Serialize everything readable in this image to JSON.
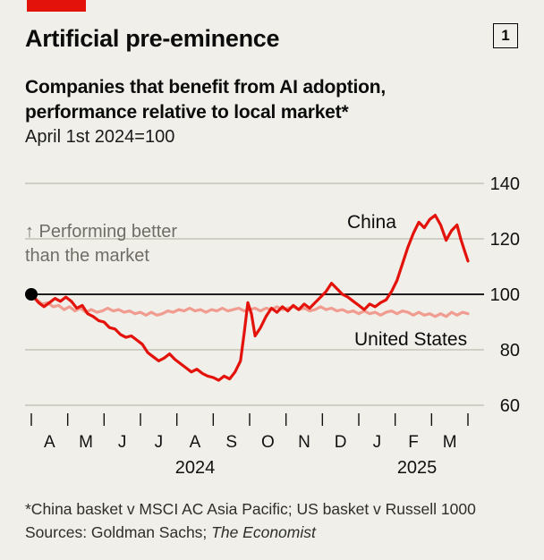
{
  "page": {
    "background": "#f0efe9"
  },
  "header": {
    "brand_color": "#e3120b",
    "figure_number": "1",
    "title": "Artificial pre-eminence",
    "subtitle_line1": "Companies that benefit from AI adoption,",
    "subtitle_line2": "performance relative to local market*",
    "index_note": "April 1st 2024=100"
  },
  "annotation": {
    "line1": "↑ Performing better",
    "line2": "than the market"
  },
  "chart_data": {
    "type": "line",
    "title": "Companies that benefit from AI adoption, performance relative to local market, April 1st 2024=100",
    "x_axis": {
      "months": [
        "A",
        "M",
        "J",
        "J",
        "A",
        "S",
        "O",
        "N",
        "D",
        "J",
        "F",
        "M"
      ],
      "years": [
        {
          "label": "2024",
          "center_month": 4.5
        },
        {
          "label": "2025",
          "center_month": 10.6
        }
      ]
    },
    "y_axis": {
      "ticks": [
        140,
        120,
        100,
        80,
        60
      ],
      "range": [
        60,
        140
      ],
      "baseline": 100
    },
    "grid_color": "#bdbab0",
    "baseline_color": "#000000",
    "start_marker": {
      "x": 0,
      "y": 100
    },
    "series": [
      {
        "name": "China",
        "color": "#e3120b",
        "points": [
          [
            0,
            100
          ],
          [
            0.1,
            98.5
          ],
          [
            0.2,
            97
          ],
          [
            0.35,
            95.5
          ],
          [
            0.5,
            97
          ],
          [
            0.65,
            98.5
          ],
          [
            0.8,
            97.5
          ],
          [
            0.95,
            99
          ],
          [
            1.1,
            97.5
          ],
          [
            1.25,
            95
          ],
          [
            1.4,
            96
          ],
          [
            1.55,
            93
          ],
          [
            1.7,
            92
          ],
          [
            1.85,
            90.5
          ],
          [
            2.0,
            90
          ],
          [
            2.15,
            88
          ],
          [
            2.3,
            87.5
          ],
          [
            2.45,
            85.5
          ],
          [
            2.6,
            84.5
          ],
          [
            2.75,
            85
          ],
          [
            2.9,
            83.5
          ],
          [
            3.05,
            82
          ],
          [
            3.2,
            79
          ],
          [
            3.35,
            77.5
          ],
          [
            3.5,
            76
          ],
          [
            3.65,
            77
          ],
          [
            3.8,
            78.5
          ],
          [
            3.95,
            76.5
          ],
          [
            4.1,
            75
          ],
          [
            4.25,
            73.5
          ],
          [
            4.4,
            72
          ],
          [
            4.55,
            73
          ],
          [
            4.7,
            71.5
          ],
          [
            4.85,
            70.5
          ],
          [
            5.0,
            70
          ],
          [
            5.15,
            69
          ],
          [
            5.3,
            70.5
          ],
          [
            5.45,
            69.5
          ],
          [
            5.6,
            72
          ],
          [
            5.75,
            76
          ],
          [
            5.85,
            86
          ],
          [
            5.95,
            97
          ],
          [
            6.05,
            93
          ],
          [
            6.15,
            85
          ],
          [
            6.3,
            88
          ],
          [
            6.45,
            92
          ],
          [
            6.6,
            95
          ],
          [
            6.75,
            93.5
          ],
          [
            6.9,
            95.5
          ],
          [
            7.05,
            94
          ],
          [
            7.2,
            96
          ],
          [
            7.35,
            94.5
          ],
          [
            7.5,
            96.5
          ],
          [
            7.65,
            95
          ],
          [
            7.8,
            97
          ],
          [
            7.95,
            99
          ],
          [
            8.1,
            101
          ],
          [
            8.25,
            104
          ],
          [
            8.4,
            102
          ],
          [
            8.55,
            100
          ],
          [
            8.7,
            99
          ],
          [
            8.85,
            97.5
          ],
          [
            9.0,
            96
          ],
          [
            9.15,
            94.5
          ],
          [
            9.3,
            96.5
          ],
          [
            9.45,
            95.5
          ],
          [
            9.6,
            97
          ],
          [
            9.75,
            98
          ],
          [
            9.9,
            101
          ],
          [
            10.05,
            105
          ],
          [
            10.2,
            111
          ],
          [
            10.35,
            117
          ],
          [
            10.5,
            122
          ],
          [
            10.65,
            126
          ],
          [
            10.8,
            124
          ],
          [
            10.95,
            127
          ],
          [
            11.1,
            128.5
          ],
          [
            11.25,
            125
          ],
          [
            11.4,
            119.5
          ],
          [
            11.55,
            123
          ],
          [
            11.7,
            125
          ],
          [
            11.8,
            120
          ],
          [
            11.9,
            116
          ],
          [
            12.0,
            112
          ]
        ]
      },
      {
        "name": "United States",
        "color": "#f19c90",
        "points": [
          [
            0,
            100
          ],
          [
            0.15,
            98
          ],
          [
            0.3,
            96.5
          ],
          [
            0.45,
            97
          ],
          [
            0.6,
            95.5
          ],
          [
            0.75,
            96
          ],
          [
            0.9,
            94.5
          ],
          [
            1.05,
            95.5
          ],
          [
            1.2,
            94
          ],
          [
            1.35,
            95
          ],
          [
            1.5,
            93.5
          ],
          [
            1.65,
            94.5
          ],
          [
            1.8,
            93.5
          ],
          [
            1.95,
            94
          ],
          [
            2.1,
            95
          ],
          [
            2.25,
            94
          ],
          [
            2.4,
            94.5
          ],
          [
            2.55,
            93.5
          ],
          [
            2.7,
            94
          ],
          [
            2.85,
            93
          ],
          [
            3.0,
            93.5
          ],
          [
            3.15,
            92.5
          ],
          [
            3.3,
            93.5
          ],
          [
            3.45,
            92.5
          ],
          [
            3.6,
            93
          ],
          [
            3.75,
            94
          ],
          [
            3.9,
            93.5
          ],
          [
            4.05,
            94.5
          ],
          [
            4.2,
            94
          ],
          [
            4.35,
            95
          ],
          [
            4.5,
            94
          ],
          [
            4.65,
            94.5
          ],
          [
            4.8,
            93.5
          ],
          [
            4.95,
            94.5
          ],
          [
            5.1,
            94
          ],
          [
            5.25,
            95
          ],
          [
            5.4,
            94
          ],
          [
            5.55,
            94.5
          ],
          [
            5.7,
            95
          ],
          [
            5.85,
            94
          ],
          [
            6.0,
            94.5
          ],
          [
            6.15,
            95
          ],
          [
            6.3,
            94
          ],
          [
            6.45,
            95
          ],
          [
            6.6,
            94.5
          ],
          [
            6.75,
            95.5
          ],
          [
            6.9,
            94.5
          ],
          [
            7.05,
            95
          ],
          [
            7.2,
            95.5
          ],
          [
            7.35,
            94.5
          ],
          [
            7.5,
            95
          ],
          [
            7.65,
            94
          ],
          [
            7.8,
            94.5
          ],
          [
            7.95,
            95.5
          ],
          [
            8.1,
            94.5
          ],
          [
            8.25,
            95
          ],
          [
            8.4,
            94
          ],
          [
            8.55,
            94.5
          ],
          [
            8.7,
            93.5
          ],
          [
            8.85,
            94
          ],
          [
            9.0,
            93
          ],
          [
            9.15,
            94
          ],
          [
            9.3,
            93
          ],
          [
            9.45,
            93.5
          ],
          [
            9.6,
            92.5
          ],
          [
            9.75,
            93.5
          ],
          [
            9.9,
            94
          ],
          [
            10.05,
            93
          ],
          [
            10.2,
            94
          ],
          [
            10.35,
            93.5
          ],
          [
            10.5,
            92.5
          ],
          [
            10.65,
            93.5
          ],
          [
            10.8,
            92.5
          ],
          [
            10.95,
            93
          ],
          [
            11.1,
            92
          ],
          [
            11.25,
            93
          ],
          [
            11.4,
            92
          ],
          [
            11.55,
            93.5
          ],
          [
            11.7,
            92.5
          ],
          [
            11.85,
            93.5
          ],
          [
            12.0,
            93
          ]
        ]
      }
    ]
  },
  "footnotes": {
    "line1": "*China basket v MSCI AC Asia Pacific; US basket v Russell 1000",
    "line2_prefix": "Sources: Goldman Sachs; ",
    "line2_source": "The Economist"
  }
}
